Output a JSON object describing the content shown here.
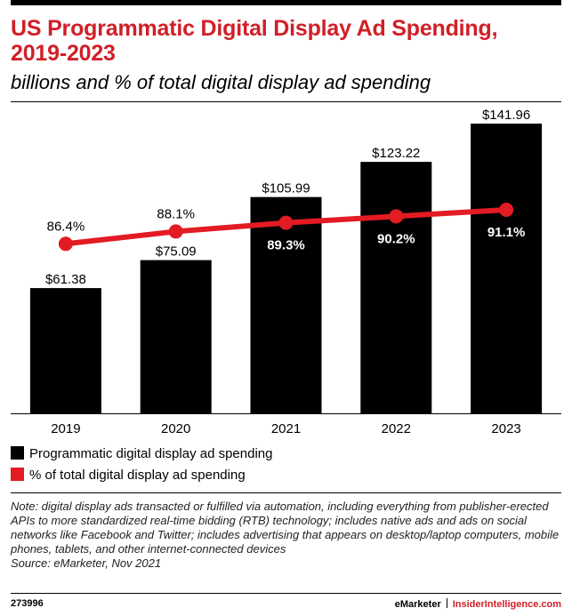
{
  "chart_data": {
    "type": "bar",
    "title": "US Programmatic Digital Display Ad Spending, 2019-2023",
    "subtitle": "billions and % of total digital display ad spending",
    "categories": [
      "2019",
      "2020",
      "2021",
      "2022",
      "2023"
    ],
    "series": [
      {
        "name": "Programmatic digital display ad spending",
        "type": "bar",
        "color": "#000000",
        "values": [
          61.38,
          75.09,
          105.99,
          123.22,
          141.96
        ],
        "labels": [
          "$61.38",
          "$75.09",
          "$105.99",
          "$123.22",
          "$141.96"
        ]
      },
      {
        "name": "% of total digital display ad spending",
        "type": "line",
        "color": "#e31b23",
        "values": [
          86.4,
          88.1,
          89.3,
          90.2,
          91.1
        ],
        "labels": [
          "86.4%",
          "88.1%",
          "89.3%",
          "90.2%",
          "91.1%"
        ]
      }
    ],
    "ylim": [
      0,
      142
    ],
    "line_ylim": [
      63,
      103
    ],
    "xlabel": "",
    "ylabel": ""
  },
  "legend": {
    "bar_label": "Programmatic digital display ad spending",
    "line_label": "% of total digital display ad spending"
  },
  "note": "Note: digital display ads transacted or fulfilled via automation, including everything from publisher-erected APIs to more standardized real-time bidding (RTB) technology; includes native ads and ads on social networks like Facebook and Twitter; includes advertising that appears on desktop/laptop computers, mobile phones, tablets, and other internet-connected devices",
  "source": "Source: eMarketer, Nov 2021",
  "footer": {
    "chart_id": "273996",
    "brand": "eMarketer",
    "site": "InsiderIntelligence.com"
  }
}
